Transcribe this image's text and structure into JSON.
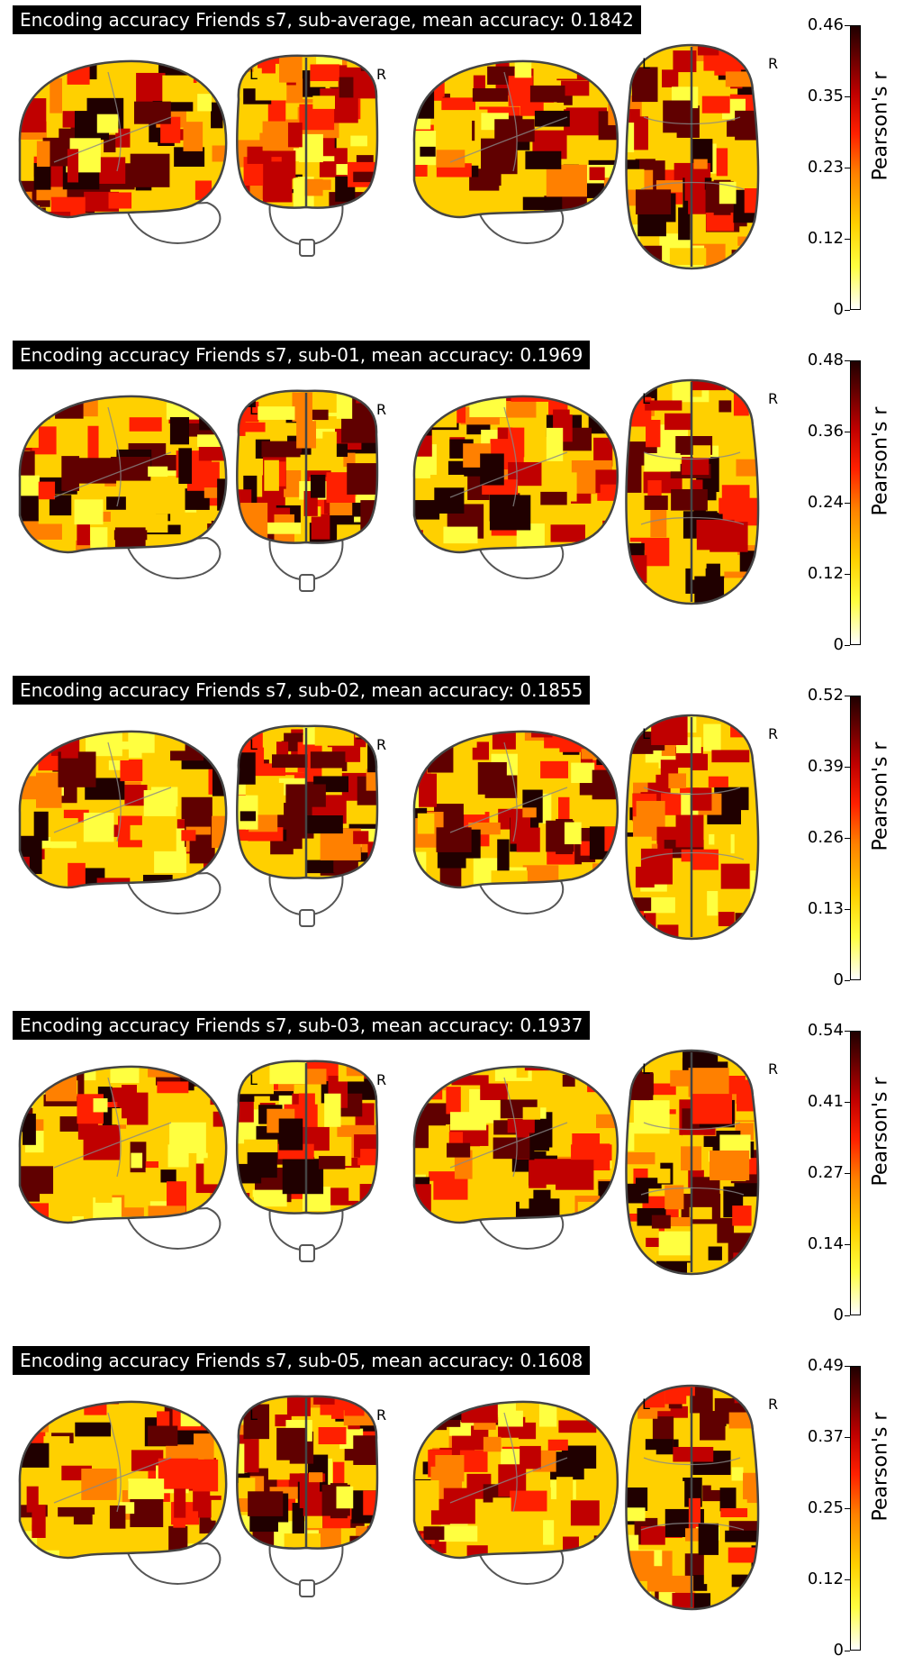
{
  "panels": [
    {
      "title": "Encoding accuracy Friends s7, sub-average, mean accuracy: 0.1842",
      "ticks": [
        "0.46",
        "0.35",
        "0.23",
        "0.12",
        "0"
      ],
      "clabel": "Pearson's r",
      "left_label": "L",
      "right_label": "R"
    },
    {
      "title": "Encoding accuracy Friends s7, sub-01, mean accuracy: 0.1969",
      "ticks": [
        "0.48",
        "0.36",
        "0.24",
        "0.12",
        "0"
      ],
      "clabel": "Pearson's r",
      "left_label": "L",
      "right_label": "R"
    },
    {
      "title": "Encoding accuracy Friends s7, sub-02, mean accuracy: 0.1855",
      "ticks": [
        "0.52",
        "0.39",
        "0.26",
        "0.13",
        "0"
      ],
      "clabel": "Pearson's r",
      "left_label": "L",
      "right_label": "R"
    },
    {
      "title": "Encoding accuracy Friends s7, sub-03, mean accuracy: 0.1937",
      "ticks": [
        "0.54",
        "0.41",
        "0.27",
        "0.14",
        "0"
      ],
      "clabel": "Pearson's r",
      "left_label": "L",
      "right_label": "R"
    },
    {
      "title": "Encoding accuracy Friends s7, sub-05, mean accuracy: 0.1608",
      "ticks": [
        "0.49",
        "0.37",
        "0.25",
        "0.12",
        "0"
      ],
      "clabel": "Pearson's r",
      "left_label": "L",
      "right_label": "R"
    }
  ],
  "colormap": [
    "#ffffff",
    "#ffff40",
    "#ffd000",
    "#ff8000",
    "#ff2000",
    "#c00000",
    "#600000",
    "#200000"
  ]
}
